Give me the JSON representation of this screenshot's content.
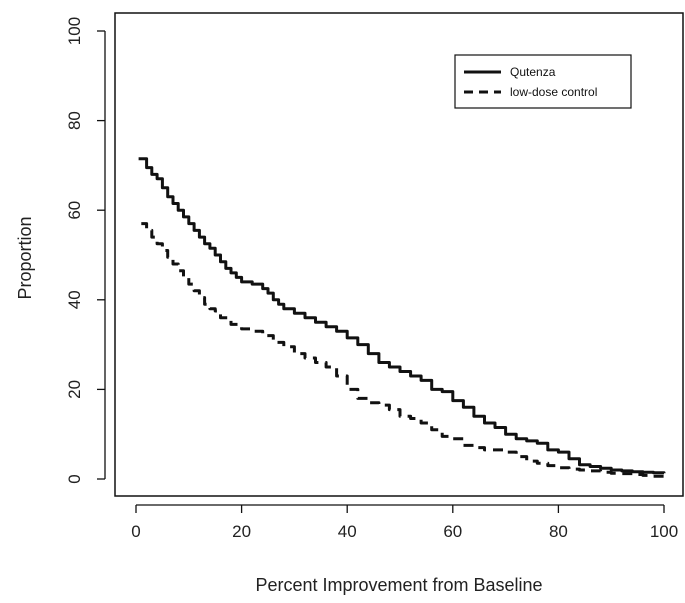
{
  "chart_data": {
    "type": "line",
    "title": "",
    "xlabel": "Percent Improvement from Baseline",
    "ylabel": "Proportion",
    "xlim": [
      0,
      100
    ],
    "ylim": [
      0,
      100
    ],
    "x_ticks": [
      0,
      20,
      40,
      60,
      80,
      100
    ],
    "y_ticks": [
      0,
      20,
      40,
      60,
      80,
      100
    ],
    "grid": false,
    "legend_position": "top-right",
    "series": [
      {
        "name": "Qutenza",
        "style": "solid",
        "color": "#111111",
        "x": [
          0.5,
          2,
          3,
          4,
          5,
          6,
          7,
          8,
          9,
          10,
          11,
          12,
          13,
          14,
          15,
          16,
          17,
          18,
          19,
          20,
          22,
          24,
          25,
          26,
          27,
          28,
          30,
          32,
          34,
          36,
          38,
          40,
          42,
          44,
          46,
          48,
          50,
          52,
          54,
          56,
          58,
          60,
          62,
          64,
          66,
          68,
          70,
          72,
          74,
          76,
          78,
          80,
          82,
          84,
          86,
          88,
          90,
          92,
          94,
          96,
          98,
          100
        ],
        "y": [
          71.5,
          69.5,
          68,
          67,
          65,
          63,
          61.5,
          60,
          58.5,
          57,
          55.5,
          54,
          52.5,
          51.5,
          50,
          48.5,
          47,
          46,
          45,
          44,
          43.5,
          42.5,
          41.5,
          40,
          39,
          38,
          37,
          36,
          35,
          34,
          33,
          31.5,
          30,
          28,
          26,
          25,
          24,
          23,
          22,
          20,
          19.5,
          17.5,
          16,
          14,
          12.5,
          11.5,
          10,
          9,
          8.5,
          8,
          6.5,
          6,
          4.5,
          3.2,
          2.8,
          2.4,
          2,
          1.8,
          1.6,
          1.5,
          1.4,
          1.3
        ]
      },
      {
        "name": "low-dose control",
        "style": "dashed",
        "color": "#111111",
        "x": [
          1,
          2,
          3,
          4,
          5,
          6,
          7,
          8,
          9,
          10,
          11,
          12,
          13,
          14,
          15,
          16,
          18,
          20,
          22,
          24,
          26,
          28,
          30,
          32,
          34,
          36,
          38,
          40,
          42,
          44,
          46,
          48,
          50,
          52,
          54,
          56,
          58,
          60,
          62,
          64,
          66,
          68,
          70,
          72,
          74,
          76,
          78,
          80,
          82,
          84,
          86,
          88,
          90,
          92,
          94,
          96,
          98,
          100
        ],
        "y": [
          57,
          55.5,
          54,
          52.5,
          51,
          49.5,
          48,
          46.5,
          45,
          43.5,
          42,
          40.5,
          39,
          38,
          37.5,
          36,
          34.5,
          33.5,
          33,
          32,
          30.5,
          29.5,
          28,
          27,
          26,
          25,
          23,
          20,
          18,
          17,
          16.5,
          15.5,
          14,
          13.5,
          12.5,
          11,
          9.5,
          9,
          7.5,
          7,
          6.5,
          6.5,
          6,
          5,
          4,
          3.5,
          3,
          2.5,
          2.2,
          2,
          1.8,
          1.5,
          1.3,
          1.2,
          1,
          0.8,
          0.6,
          0.5
        ]
      }
    ]
  }
}
